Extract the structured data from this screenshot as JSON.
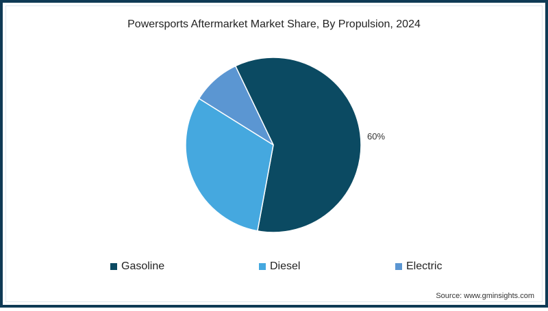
{
  "title": "Powersports Aftermarket Market Share, By Propulsion, 2024",
  "source": "Source: www.gminsights.com",
  "colors": {
    "frame": "#0e3a55",
    "gasoline": "#0b4a62",
    "diesel": "#45a8df",
    "electric": "#5b96d2"
  },
  "slice_labels": {
    "gasoline": "60%"
  },
  "legend": [
    {
      "label": "Gasoline",
      "color": "#0b4a62"
    },
    {
      "label": "Diesel",
      "color": "#45a8df"
    },
    {
      "label": "Electric",
      "color": "#5b96d2"
    }
  ],
  "chart_data": {
    "type": "pie",
    "title": "Powersports Aftermarket Market Share, By Propulsion, 2024",
    "categories": [
      "Gasoline",
      "Diesel",
      "Electric"
    ],
    "values": [
      60,
      31,
      9
    ],
    "unit": "%",
    "data_labels": [
      {
        "category": "Gasoline",
        "text": "60%"
      }
    ],
    "colors": [
      "#0b4a62",
      "#45a8df",
      "#5b96d2"
    ],
    "legend_position": "bottom",
    "start_angle_deg": -25.6,
    "direction": "clockwise",
    "source": "Source: www.gminsights.com"
  }
}
